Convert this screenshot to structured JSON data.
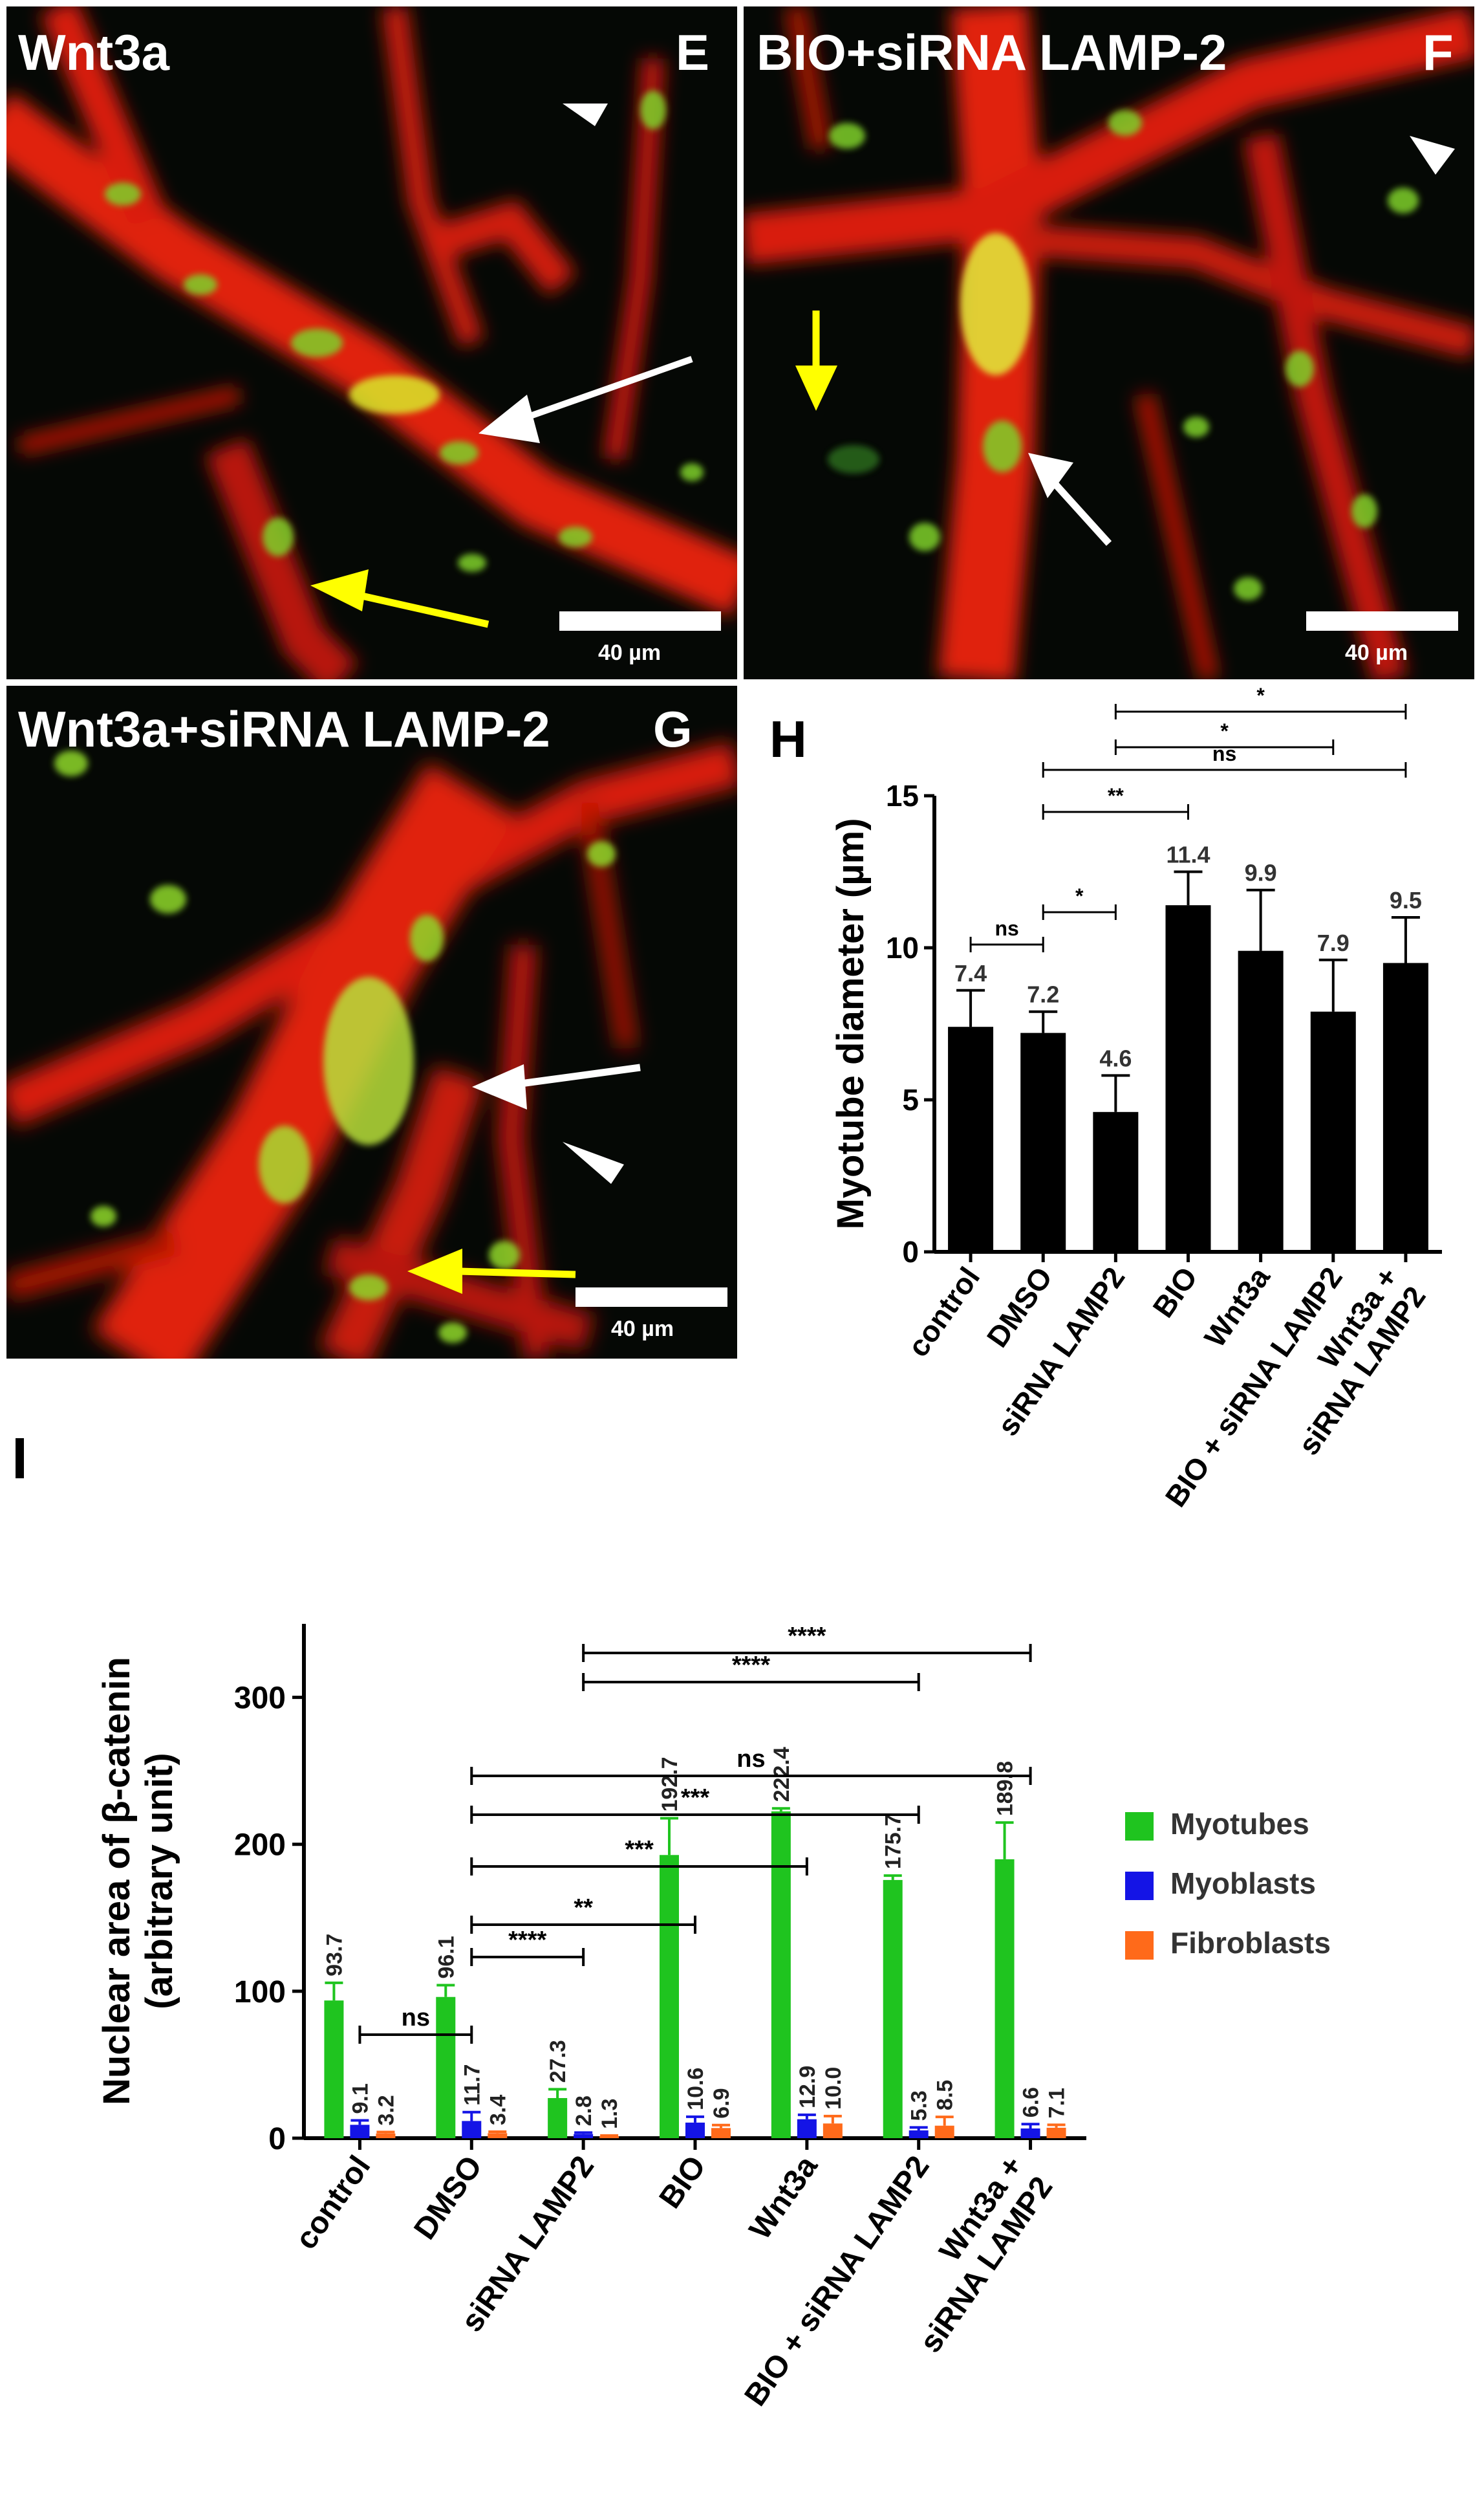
{
  "panels": {
    "e": {
      "title": "Wnt3a",
      "letter": "E",
      "scale": "40 µm"
    },
    "f": {
      "title": "BIO+siRNA LAMP-2",
      "letter": "F",
      "scale": "40 µm"
    },
    "g": {
      "title": "Wnt3a+siRNA LAMP-2",
      "letter": "G",
      "scale": "40 µm"
    }
  },
  "colors": {
    "myotubes": "#1fc41f",
    "myoblasts": "#1414e6",
    "fibroblasts": "#ff6a1a",
    "bar_h": "#000000"
  },
  "chart_data": [
    {
      "panel": "H",
      "type": "bar",
      "categories": [
        "control",
        "DMSO",
        "siRNA LAMP2",
        "BIO",
        "Wnt3a",
        "BIO + siRNA LAMP2",
        "Wnt3a +\nsiRNA LAMP2"
      ],
      "values": [
        7.4,
        7.2,
        4.6,
        11.4,
        9.9,
        7.9,
        9.5
      ],
      "value_labels": [
        "7.4",
        "7.2",
        "4.6",
        "11.4",
        "9.9",
        "7.9",
        "9.5"
      ],
      "errors": [
        1.2,
        0.7,
        1.2,
        1.1,
        2.0,
        1.7,
        1.5
      ],
      "ylabel": "Myotube diameter (µm)",
      "ylim": [
        0,
        15
      ],
      "yticks": [
        0,
        5,
        10,
        15
      ],
      "grid": false,
      "significance": [
        {
          "from": 0,
          "to": 1,
          "label": "ns"
        },
        {
          "from": 1,
          "to": 2,
          "label": "*"
        },
        {
          "from": 1,
          "to": 3,
          "label": "**"
        },
        {
          "from": 1,
          "to": 6,
          "label": "ns"
        },
        {
          "from": 2,
          "to": 5,
          "label": "*"
        },
        {
          "from": 2,
          "to": 6,
          "label": "*"
        }
      ]
    },
    {
      "panel": "I",
      "type": "bar",
      "categories": [
        "control",
        "DMSO",
        "siRNA LAMP2",
        "BIO",
        "Wnt3a",
        "BIO + siRNA LAMP2",
        "Wnt3a +\nsiRNA LAMP2"
      ],
      "series": [
        {
          "name": "Myotubes",
          "values": [
            93.7,
            96.1,
            27.3,
            192.7,
            222.4,
            175.7,
            189.8
          ],
          "errors": [
            12,
            8,
            6,
            25,
            2,
            3,
            25
          ]
        },
        {
          "name": "Myoblasts",
          "values": [
            9.1,
            11.7,
            2.8,
            10.6,
            12.9,
            5.3,
            6.6
          ],
          "errors": [
            3,
            6,
            1,
            4,
            3,
            2,
            3
          ]
        },
        {
          "name": "Fibroblasts",
          "values": [
            3.2,
            3.4,
            1.3,
            6.9,
            10.0,
            8.5,
            7.1
          ],
          "errors": [
            1,
            1,
            0.5,
            2,
            5,
            6,
            2
          ]
        }
      ],
      "value_labels": [
        [
          "93.7",
          "96.1",
          "27.3",
          "192.7",
          "222.4",
          "175.7",
          "189.8"
        ],
        [
          "9.1",
          "11.7",
          "2.8",
          "10.6",
          "12.9",
          "5.3",
          "6.6"
        ],
        [
          "3.2",
          "3.4",
          "1.3",
          "6.9",
          "10.0",
          "8.5",
          "7.1"
        ]
      ],
      "ylabel": "Nuclear area of β-catenin\n(arbitrary unit)",
      "ylim": [
        0,
        350
      ],
      "yticks": [
        0,
        100,
        200,
        300
      ],
      "legend_position": "right",
      "grid": false,
      "significance": [
        {
          "from": 0,
          "to": 1,
          "label": "ns"
        },
        {
          "from": 1,
          "to": 2,
          "label": "****"
        },
        {
          "from": 1,
          "to": 3,
          "label": "**"
        },
        {
          "from": 1,
          "to": 4,
          "label": "***"
        },
        {
          "from": 1,
          "to": 5,
          "label": "***"
        },
        {
          "from": 1,
          "to": 6,
          "label": "ns"
        },
        {
          "from": 2,
          "to": 5,
          "label": "****"
        },
        {
          "from": 2,
          "to": 6,
          "label": "****"
        }
      ]
    }
  ],
  "figure": {
    "panel_i_label": "I"
  }
}
